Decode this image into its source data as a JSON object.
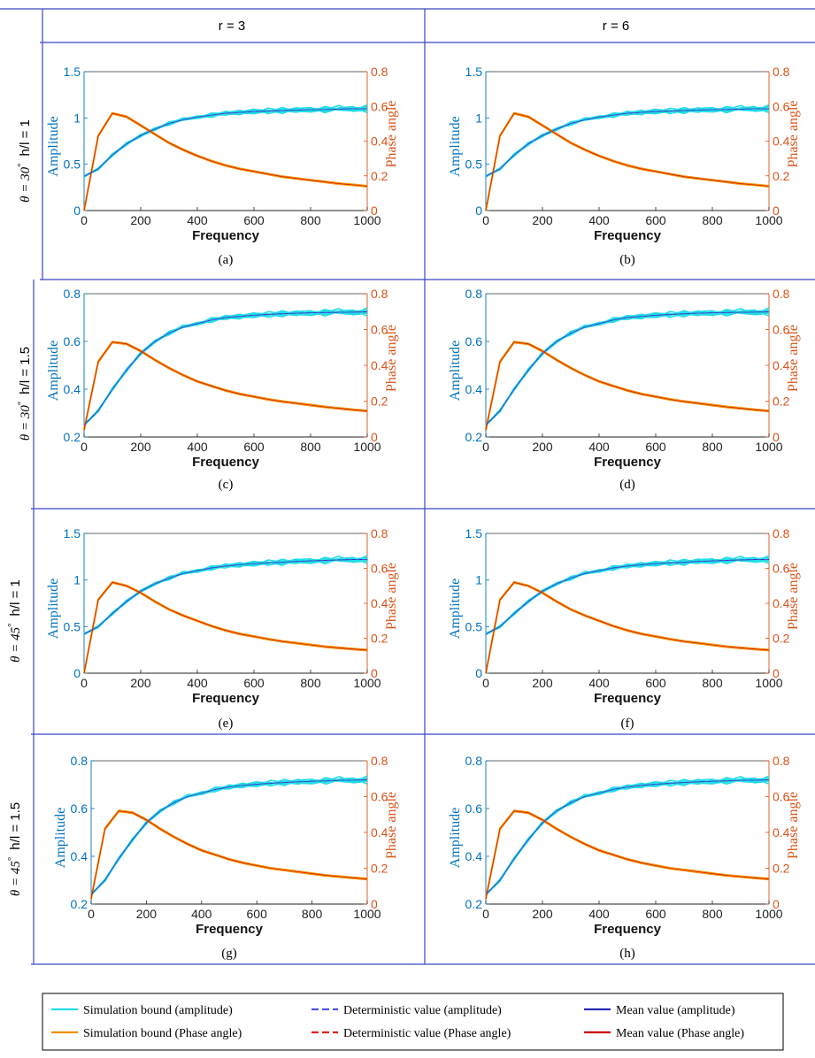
{
  "table": {
    "columns": [
      "r = 3",
      "r = 6"
    ],
    "rows": [
      {
        "theta": "θ = 30",
        "deg": "°",
        "hl": "h/l = 1"
      },
      {
        "theta": "θ = 30",
        "deg": "°",
        "hl": "h/l = 1.5"
      },
      {
        "theta": "θ = 45",
        "deg": "°",
        "hl": "h/l = 1"
      },
      {
        "theta": "θ = 45",
        "deg": "°",
        "hl": "h/l = 1.5"
      }
    ]
  },
  "colors": {
    "amplitude_axis": "#0072BD",
    "phase_axis": "#D95319",
    "sim_amplitude": "#22DDE6",
    "sim_phase": "#F39000",
    "det_amplitude": "#4A55E0",
    "det_phase": "#E02020",
    "mean_amplitude": "#2A2FB8",
    "mean_phase": "#CC0000",
    "grid_border": "#3B47C4"
  },
  "legend": [
    {
      "label": "Simulation bound (amplitude)",
      "color": "#22DDE6",
      "style": "solid"
    },
    {
      "label": "Deterministic value (amplitude)",
      "color": "#4A55E0",
      "style": "dashed"
    },
    {
      "label": "Mean value (amplitude)",
      "color": "#2A2FB8",
      "style": "solid"
    },
    {
      "label": "Simulation bound (Phase angle)",
      "color": "#F39000",
      "style": "solid"
    },
    {
      "label": "Deterministic value (Phase angle)",
      "color": "#E02020",
      "style": "dashed"
    },
    {
      "label": "Mean value (Phase angle)",
      "color": "#CC0000",
      "style": "solid"
    }
  ],
  "chart_data": [
    {
      "panel": "(a)",
      "type": "line",
      "xlabel": "Frequency",
      "ylabel_left": "Amplitude",
      "ylabel_right": "Phase angle",
      "xlim": [
        0,
        1000
      ],
      "xticks": [
        "0",
        "200",
        "400",
        "600",
        "800",
        "1000"
      ],
      "ylim_left": [
        0,
        1.5
      ],
      "yticks_left": [
        "0",
        "0.5",
        "1",
        "1.5"
      ],
      "ylim_right": [
        0,
        0.8
      ],
      "yticks_right": [
        "0",
        "0.2",
        "0.4",
        "0.6",
        "0.8"
      ],
      "x": [
        0,
        50,
        100,
        150,
        200,
        250,
        300,
        350,
        400,
        450,
        500,
        550,
        600,
        650,
        700,
        750,
        800,
        850,
        900,
        950,
        1000
      ],
      "amplitude": [
        0.37,
        0.45,
        0.6,
        0.72,
        0.81,
        0.88,
        0.94,
        0.98,
        1.01,
        1.03,
        1.05,
        1.06,
        1.07,
        1.075,
        1.08,
        1.085,
        1.09,
        1.09,
        1.095,
        1.1,
        1.1
      ],
      "phase": [
        0,
        0.43,
        0.56,
        0.54,
        0.49,
        0.44,
        0.39,
        0.35,
        0.315,
        0.285,
        0.26,
        0.24,
        0.225,
        0.21,
        0.195,
        0.185,
        0.175,
        0.165,
        0.155,
        0.148,
        0.14
      ]
    },
    {
      "panel": "(b)",
      "type": "line",
      "xlabel": "Frequency",
      "ylabel_left": "Amplitude",
      "ylabel_right": "Phase angle",
      "xlim": [
        0,
        1000
      ],
      "xticks": [
        "0",
        "200",
        "400",
        "600",
        "800",
        "1000"
      ],
      "ylim_left": [
        0,
        1.5
      ],
      "yticks_left": [
        "0",
        "0.5",
        "1",
        "1.5"
      ],
      "ylim_right": [
        0,
        0.8
      ],
      "yticks_right": [
        "0",
        "0.2",
        "0.4",
        "0.6",
        "0.8"
      ],
      "x": [
        0,
        50,
        100,
        150,
        200,
        250,
        300,
        350,
        400,
        450,
        500,
        550,
        600,
        650,
        700,
        750,
        800,
        850,
        900,
        950,
        1000
      ],
      "amplitude": [
        0.37,
        0.45,
        0.6,
        0.72,
        0.81,
        0.88,
        0.94,
        0.98,
        1.01,
        1.03,
        1.05,
        1.06,
        1.07,
        1.075,
        1.08,
        1.085,
        1.09,
        1.09,
        1.095,
        1.1,
        1.1
      ],
      "phase": [
        0,
        0.43,
        0.56,
        0.54,
        0.49,
        0.44,
        0.39,
        0.35,
        0.315,
        0.285,
        0.26,
        0.24,
        0.225,
        0.21,
        0.195,
        0.185,
        0.175,
        0.165,
        0.155,
        0.148,
        0.14
      ]
    },
    {
      "panel": "(c)",
      "type": "line",
      "xlabel": "Frequency",
      "ylabel_left": "Amplitude",
      "ylabel_right": "Phase angle",
      "xlim": [
        0,
        1000
      ],
      "xticks": [
        "0",
        "200",
        "400",
        "600",
        "800",
        "1000"
      ],
      "ylim_left": [
        0.2,
        0.8
      ],
      "yticks_left": [
        "0.2",
        "0.4",
        "0.6",
        "0.8"
      ],
      "ylim_right": [
        0,
        0.8
      ],
      "yticks_right": [
        "0",
        "0.2",
        "0.4",
        "0.6",
        "0.8"
      ],
      "x": [
        0,
        50,
        100,
        150,
        200,
        250,
        300,
        350,
        400,
        450,
        500,
        550,
        600,
        650,
        700,
        750,
        800,
        850,
        900,
        950,
        1000
      ],
      "amplitude": [
        0.25,
        0.31,
        0.4,
        0.48,
        0.55,
        0.6,
        0.635,
        0.66,
        0.675,
        0.69,
        0.7,
        0.705,
        0.71,
        0.713,
        0.716,
        0.718,
        0.72,
        0.721,
        0.722,
        0.723,
        0.724
      ],
      "phase": [
        0.04,
        0.42,
        0.53,
        0.52,
        0.48,
        0.43,
        0.385,
        0.345,
        0.31,
        0.285,
        0.26,
        0.24,
        0.225,
        0.21,
        0.198,
        0.188,
        0.178,
        0.168,
        0.16,
        0.152,
        0.145
      ]
    },
    {
      "panel": "(d)",
      "type": "line",
      "xlabel": "Frequency",
      "ylabel_left": "Amplitude",
      "ylabel_right": "Phase angle",
      "xlim": [
        0,
        1000
      ],
      "xticks": [
        "0",
        "200",
        "400",
        "600",
        "800",
        "1000"
      ],
      "ylim_left": [
        0.2,
        0.8
      ],
      "yticks_left": [
        "0.2",
        "0.4",
        "0.6",
        "0.8"
      ],
      "ylim_right": [
        0,
        0.8
      ],
      "yticks_right": [
        "0",
        "0.2",
        "0.4",
        "0.6",
        "0.8"
      ],
      "x": [
        0,
        50,
        100,
        150,
        200,
        250,
        300,
        350,
        400,
        450,
        500,
        550,
        600,
        650,
        700,
        750,
        800,
        850,
        900,
        950,
        1000
      ],
      "amplitude": [
        0.25,
        0.31,
        0.4,
        0.48,
        0.55,
        0.6,
        0.635,
        0.66,
        0.675,
        0.69,
        0.7,
        0.705,
        0.71,
        0.713,
        0.716,
        0.718,
        0.72,
        0.721,
        0.722,
        0.723,
        0.724
      ],
      "phase": [
        0.04,
        0.42,
        0.53,
        0.52,
        0.48,
        0.43,
        0.385,
        0.345,
        0.31,
        0.285,
        0.26,
        0.24,
        0.225,
        0.21,
        0.198,
        0.188,
        0.178,
        0.168,
        0.16,
        0.152,
        0.145
      ]
    },
    {
      "panel": "(e)",
      "type": "line",
      "xlabel": "Frequency",
      "ylabel_left": "Amplitude",
      "ylabel_right": "Phase angle",
      "xlim": [
        0,
        1000
      ],
      "xticks": [
        "0",
        "200",
        "400",
        "600",
        "800",
        "1000"
      ],
      "ylim_left": [
        0,
        1.5
      ],
      "yticks_left": [
        "0",
        "0.5",
        "1",
        "1.5"
      ],
      "ylim_right": [
        0,
        0.8
      ],
      "yticks_right": [
        "0",
        "0.2",
        "0.4",
        "0.6",
        "0.8"
      ],
      "x": [
        0,
        50,
        100,
        150,
        200,
        250,
        300,
        350,
        400,
        450,
        500,
        550,
        600,
        650,
        700,
        750,
        800,
        850,
        900,
        950,
        1000
      ],
      "amplitude": [
        0.42,
        0.5,
        0.64,
        0.77,
        0.88,
        0.96,
        1.02,
        1.07,
        1.1,
        1.13,
        1.15,
        1.165,
        1.175,
        1.185,
        1.19,
        1.2,
        1.205,
        1.21,
        1.215,
        1.22,
        1.22
      ],
      "phase": [
        0,
        0.42,
        0.52,
        0.5,
        0.46,
        0.41,
        0.365,
        0.33,
        0.3,
        0.27,
        0.245,
        0.225,
        0.21,
        0.195,
        0.182,
        0.172,
        0.162,
        0.152,
        0.145,
        0.138,
        0.132
      ]
    },
    {
      "panel": "(f)",
      "type": "line",
      "xlabel": "Frequency",
      "ylabel_left": "Amplitude",
      "ylabel_right": "Phase angle",
      "xlim": [
        0,
        1000
      ],
      "xticks": [
        "0",
        "200",
        "400",
        "600",
        "800",
        "1000"
      ],
      "ylim_left": [
        0,
        1.5
      ],
      "yticks_left": [
        "0",
        "0.5",
        "1",
        "1.5"
      ],
      "ylim_right": [
        0,
        0.8
      ],
      "yticks_right": [
        "0",
        "0.2",
        "0.4",
        "0.6",
        "0.8"
      ],
      "x": [
        0,
        50,
        100,
        150,
        200,
        250,
        300,
        350,
        400,
        450,
        500,
        550,
        600,
        650,
        700,
        750,
        800,
        850,
        900,
        950,
        1000
      ],
      "amplitude": [
        0.42,
        0.5,
        0.64,
        0.77,
        0.88,
        0.96,
        1.02,
        1.07,
        1.1,
        1.13,
        1.15,
        1.165,
        1.175,
        1.185,
        1.19,
        1.2,
        1.205,
        1.21,
        1.215,
        1.22,
        1.22
      ],
      "phase": [
        0,
        0.42,
        0.52,
        0.5,
        0.46,
        0.41,
        0.365,
        0.33,
        0.3,
        0.27,
        0.245,
        0.225,
        0.21,
        0.195,
        0.182,
        0.172,
        0.162,
        0.152,
        0.145,
        0.138,
        0.132
      ]
    },
    {
      "panel": "(g)",
      "type": "line",
      "xlabel": "Frequency",
      "ylabel_left": "Amplitude",
      "ylabel_right": "Phase angle",
      "xlim": [
        0,
        1000
      ],
      "xticks": [
        "0",
        "200",
        "400",
        "600",
        "800",
        "1000"
      ],
      "ylim_left": [
        0.2,
        0.8
      ],
      "yticks_left": [
        "0.2",
        "0.4",
        "0.6",
        "0.8"
      ],
      "ylim_right": [
        0,
        0.8
      ],
      "yticks_right": [
        "0",
        "0.2",
        "0.4",
        "0.6",
        "0.8"
      ],
      "x": [
        0,
        50,
        100,
        150,
        200,
        250,
        300,
        350,
        400,
        450,
        500,
        550,
        600,
        650,
        700,
        750,
        800,
        850,
        900,
        950,
        1000
      ],
      "amplitude": [
        0.24,
        0.3,
        0.39,
        0.47,
        0.54,
        0.59,
        0.625,
        0.65,
        0.665,
        0.68,
        0.69,
        0.697,
        0.702,
        0.706,
        0.709,
        0.712,
        0.714,
        0.716,
        0.718,
        0.719,
        0.72
      ],
      "phase": [
        0.03,
        0.42,
        0.52,
        0.51,
        0.47,
        0.42,
        0.375,
        0.335,
        0.3,
        0.275,
        0.25,
        0.23,
        0.215,
        0.2,
        0.19,
        0.18,
        0.17,
        0.16,
        0.153,
        0.146,
        0.14
      ]
    },
    {
      "panel": "(h)",
      "type": "line",
      "xlabel": "Frequency",
      "ylabel_left": "Amplitude",
      "ylabel_right": "Phase angle",
      "xlim": [
        0,
        1000
      ],
      "xticks": [
        "0",
        "200",
        "400",
        "600",
        "800",
        "1000"
      ],
      "ylim_left": [
        0.2,
        0.8
      ],
      "yticks_left": [
        "0.2",
        "0.4",
        "0.6",
        "0.8"
      ],
      "ylim_right": [
        0,
        0.8
      ],
      "yticks_right": [
        "0",
        "0.2",
        "0.4",
        "0.6",
        "0.8"
      ],
      "x": [
        0,
        50,
        100,
        150,
        200,
        250,
        300,
        350,
        400,
        450,
        500,
        550,
        600,
        650,
        700,
        750,
        800,
        850,
        900,
        950,
        1000
      ],
      "amplitude": [
        0.24,
        0.3,
        0.39,
        0.47,
        0.54,
        0.59,
        0.625,
        0.65,
        0.665,
        0.68,
        0.69,
        0.697,
        0.702,
        0.706,
        0.709,
        0.712,
        0.714,
        0.716,
        0.718,
        0.719,
        0.72
      ],
      "phase": [
        0.03,
        0.42,
        0.52,
        0.51,
        0.47,
        0.42,
        0.375,
        0.335,
        0.3,
        0.275,
        0.25,
        0.23,
        0.215,
        0.2,
        0.19,
        0.18,
        0.17,
        0.16,
        0.153,
        0.146,
        0.14
      ]
    }
  ]
}
